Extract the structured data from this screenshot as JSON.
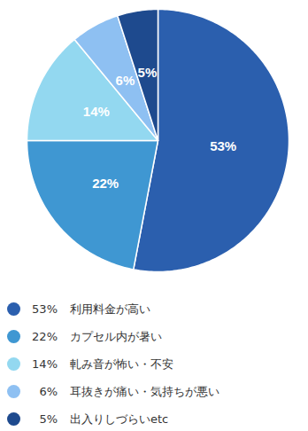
{
  "chart_data": {
    "type": "pie",
    "categories": [
      "利用料金が高い",
      "カプセル内が暑い",
      "軋み音が怖い・不安",
      "耳抜きが痛い・気持ちが悪い",
      "出入りしづらいetc"
    ],
    "values": [
      53,
      22,
      14,
      6,
      5
    ],
    "value_labels": [
      "53%",
      "22%",
      "14%",
      "6%",
      "5%"
    ],
    "colors": [
      "#2b5fae",
      "#3f97d2",
      "#93d8f0",
      "#8ec0f2",
      "#1e4a8e"
    ],
    "data_labels": true,
    "legend": "bottom"
  }
}
